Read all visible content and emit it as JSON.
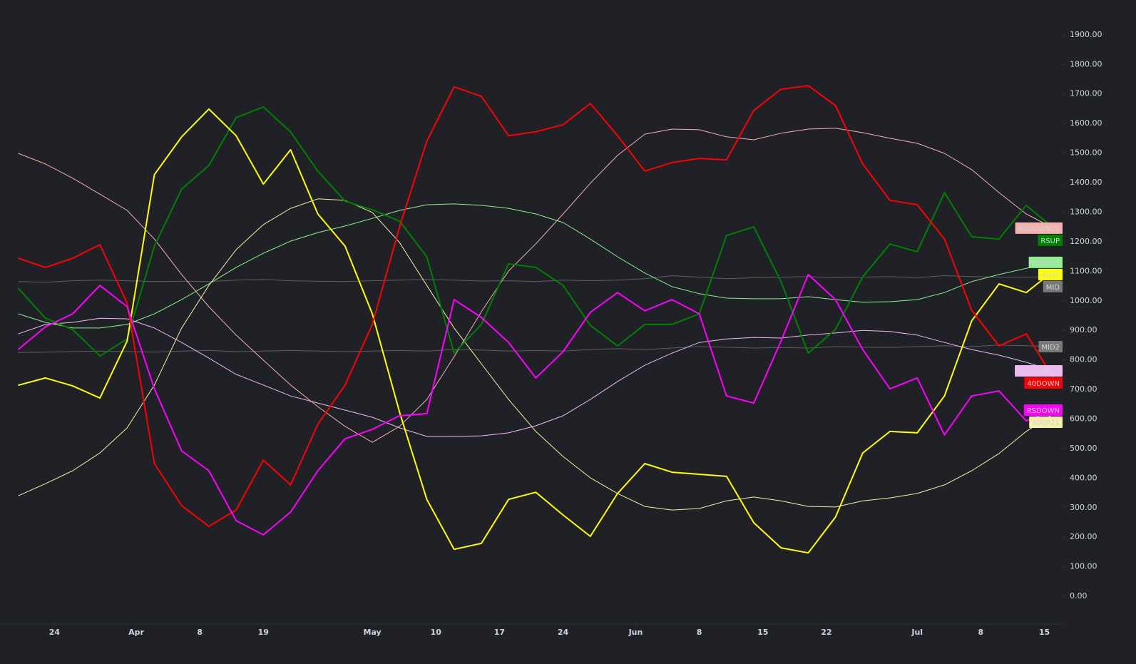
{
  "chart_data": {
    "type": "line",
    "x": [
      2,
      5,
      8,
      11,
      14,
      17,
      20,
      23,
      26,
      29,
      32,
      35,
      38,
      41,
      44,
      47,
      50,
      53,
      56,
      59,
      62,
      65,
      68,
      71,
      74,
      77,
      80,
      83,
      86,
      89,
      92,
      95,
      98,
      101,
      104,
      107,
      110,
      113,
      116
    ],
    "xlim": [
      0,
      117
    ],
    "xticks": [
      {
        "value": 6,
        "label": "24"
      },
      {
        "value": 15,
        "label": "Apr"
      },
      {
        "value": 22,
        "label": "8"
      },
      {
        "value": 29,
        "label": "19"
      },
      {
        "value": 41,
        "label": "May"
      },
      {
        "value": 48,
        "label": "10"
      },
      {
        "value": 55,
        "label": "17"
      },
      {
        "value": 62,
        "label": "24"
      },
      {
        "value": 70,
        "label": "Jun"
      },
      {
        "value": 77,
        "label": "8"
      },
      {
        "value": 84,
        "label": "15"
      },
      {
        "value": 91,
        "label": "22"
      },
      {
        "value": 101,
        "label": "Jul"
      },
      {
        "value": 108,
        "label": "8"
      },
      {
        "value": 115,
        "label": "15"
      }
    ],
    "ylim": [
      -94,
      2018
    ],
    "yticks": [
      {
        "value": 0,
        "label": "0.00"
      },
      {
        "value": 100,
        "label": "100.00"
      },
      {
        "value": 200,
        "label": "200.00"
      },
      {
        "value": 300,
        "label": "300.00"
      },
      {
        "value": 400,
        "label": "400.00"
      },
      {
        "value": 500,
        "label": "500.00"
      },
      {
        "value": 600,
        "label": "600.00"
      },
      {
        "value": 700,
        "label": "700.00"
      },
      {
        "value": 800,
        "label": "800.00"
      },
      {
        "value": 900,
        "label": "900.00"
      },
      {
        "value": 1000,
        "label": "1000.00"
      },
      {
        "value": 1100,
        "label": "1100.00"
      },
      {
        "value": 1200,
        "label": "1200.00"
      },
      {
        "value": 1300,
        "label": "1300.00"
      },
      {
        "value": 1400,
        "label": "1400.00"
      },
      {
        "value": 1500,
        "label": "1500.00"
      },
      {
        "value": 1600,
        "label": "1600.00"
      },
      {
        "value": 1700,
        "label": "1700.00"
      },
      {
        "value": 1800,
        "label": "1800.00"
      },
      {
        "value": 1900,
        "label": "1900.00"
      }
    ],
    "series": [
      {
        "name": "MID",
        "color": "#787878",
        "values": [
          1065,
          1063,
          1068,
          1070,
          1068,
          1065,
          1066,
          1065,
          1070,
          1072,
          1068,
          1066,
          1065,
          1068,
          1070,
          1072,
          1070,
          1067,
          1068,
          1065,
          1070,
          1068,
          1070,
          1075,
          1085,
          1080,
          1075,
          1078,
          1080,
          1082,
          1078,
          1080,
          1082,
          1078,
          1085,
          1082,
          1080,
          1080,
          1082
        ]
      },
      {
        "name": "MID2",
        "color": "#787878",
        "values": [
          825,
          826,
          828,
          830,
          828,
          826,
          830,
          832,
          828,
          830,
          832,
          830,
          828,
          830,
          832,
          830,
          835,
          833,
          830,
          832,
          830,
          835,
          838,
          835,
          840,
          845,
          843,
          840,
          842,
          840,
          845,
          843,
          842,
          845,
          848,
          845,
          850,
          848,
          845
        ]
      },
      {
        "name": "40DOWN21",
        "color": "#f4b1ae",
        "values": [
          1499,
          1463,
          1415,
          1361,
          1306,
          1209,
          1089,
          980,
          884,
          799,
          715,
          642,
          575,
          521,
          575,
          666,
          811,
          963,
          1101,
          1193,
          1294,
          1398,
          1492,
          1564,
          1581,
          1579,
          1555,
          1545,
          1567,
          1581,
          1584,
          1569,
          1550,
          1533,
          1499,
          1444,
          1366,
          1294,
          1246
        ]
      },
      {
        "name": "RSUP27",
        "color": "#90ee90",
        "values": [
          956,
          927,
          908,
          908,
          920,
          956,
          1004,
          1057,
          1113,
          1161,
          1202,
          1231,
          1253,
          1279,
          1306,
          1325,
          1328,
          1323,
          1313,
          1294,
          1265,
          1209,
          1149,
          1094,
          1048,
          1024,
          1009,
          1007,
          1007,
          1014,
          1004,
          995,
          997,
          1004,
          1028,
          1065,
          1089,
          1110,
          1130
        ]
      },
      {
        "name": "40UP21",
        "color": "#f5f0a8",
        "values": [
          340,
          381,
          425,
          485,
          570,
          715,
          908,
          1052,
          1173,
          1258,
          1313,
          1345,
          1340,
          1299,
          1197,
          1052,
          908,
          787,
          666,
          558,
          473,
          401,
          348,
          304,
          292,
          297,
          323,
          336,
          323,
          304,
          302,
          323,
          333,
          348,
          377,
          425,
          483,
          558,
          618
        ]
      },
      {
        "name": "RSDOWN27",
        "color": "#f0b8f0",
        "values": [
          888,
          920,
          927,
          941,
          939,
          908,
          859,
          806,
          751,
          715,
          678,
          654,
          630,
          606,
          570,
          541,
          541,
          543,
          553,
          577,
          611,
          666,
          727,
          782,
          823,
          859,
          871,
          876,
          874,
          884,
          891,
          900,
          896,
          884,
          859,
          835,
          816,
          792,
          763
        ]
      },
      {
        "name": "RSUP",
        "color": "#008000",
        "values": [
          1043,
          941,
          903,
          813,
          871,
          1185,
          1378,
          1458,
          1620,
          1656,
          1572,
          1439,
          1337,
          1308,
          1270,
          1149,
          823,
          920,
          1125,
          1113,
          1052,
          917,
          847,
          920,
          920,
          956,
          1221,
          1250,
          1065,
          823,
          903,
          1081,
          1192,
          1166,
          1366,
          1217,
          1209,
          1323,
          1246
        ]
      },
      {
        "name": "40UP",
        "color": "#ffff00",
        "values": [
          714,
          739,
          712,
          671,
          864,
          1427,
          1555,
          1649,
          1559,
          1395,
          1511,
          1294,
          1185,
          956,
          623,
          328,
          159,
          179,
          328,
          352,
          275,
          203,
          348,
          449,
          420,
          413,
          406,
          249,
          164,
          147,
          268,
          485,
          558,
          553,
          678,
          932,
          1057,
          1028,
          1101
        ]
      },
      {
        "name": "40DOWN",
        "color": "#ff0000",
        "values": [
          1144,
          1113,
          1144,
          1190,
          992,
          449,
          307,
          237,
          292,
          461,
          377,
          582,
          715,
          920,
          1250,
          1540,
          1724,
          1692,
          1559,
          1572,
          1596,
          1668,
          1559,
          1439,
          1468,
          1482,
          1477,
          1644,
          1716,
          1728,
          1661,
          1463,
          1340,
          1325,
          1209,
          968,
          847,
          888,
          739
        ]
      },
      {
        "name": "RSDOWN",
        "color": "#ff00ff",
        "values": [
          835,
          912,
          956,
          1052,
          980,
          702,
          492,
          425,
          256,
          208,
          285,
          425,
          533,
          565,
          611,
          618,
          1004,
          944,
          859,
          739,
          828,
          961,
          1028,
          966,
          1004,
          956,
          678,
          654,
          864,
          1089,
          1004,
          835,
          702,
          739,
          546,
          678,
          695,
          594,
          630
        ]
      }
    ]
  }
}
